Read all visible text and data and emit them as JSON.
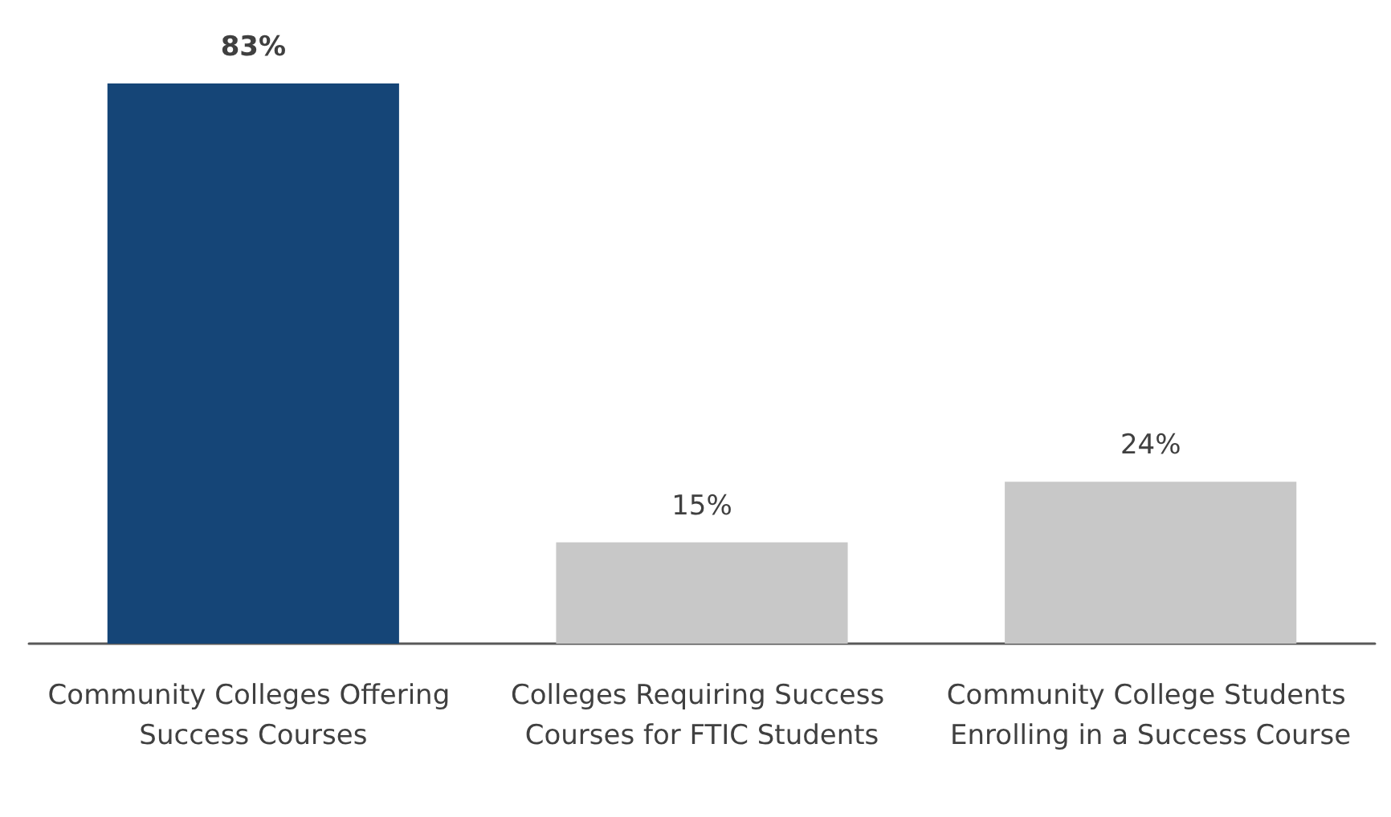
{
  "chart_data": {
    "type": "bar",
    "categories": [
      "Community Colleges Offering Success Courses",
      "Colleges Requiring Success Courses for FTIC Students",
      "Community College Students Enrolling in a Success Course"
    ],
    "values": [
      83,
      15,
      24
    ],
    "colors": [
      "#154577",
      "#c8c8c8",
      "#c8c8c8"
    ],
    "value_labels": [
      "83%",
      "15%",
      "24%"
    ]
  }
}
